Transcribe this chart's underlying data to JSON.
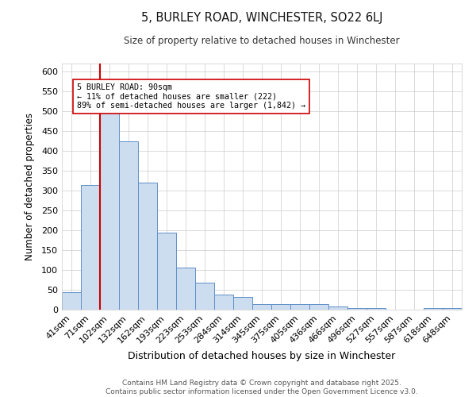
{
  "title": "5, BURLEY ROAD, WINCHESTER, SO22 6LJ",
  "subtitle": "Size of property relative to detached houses in Winchester",
  "xlabel": "Distribution of detached houses by size in Winchester",
  "ylabel": "Number of detached properties",
  "categories": [
    "41sqm",
    "71sqm",
    "102sqm",
    "132sqm",
    "162sqm",
    "193sqm",
    "223sqm",
    "253sqm",
    "284sqm",
    "314sqm",
    "345sqm",
    "375sqm",
    "405sqm",
    "436sqm",
    "466sqm",
    "496sqm",
    "527sqm",
    "557sqm",
    "587sqm",
    "618sqm",
    "648sqm"
  ],
  "values": [
    45,
    315,
    500,
    425,
    320,
    195,
    107,
    68,
    38,
    33,
    14,
    14,
    14,
    14,
    9,
    5,
    4,
    1,
    1,
    4,
    4
  ],
  "bar_color": "#ccddf0",
  "bar_edge_color": "#6090c8",
  "vline_color": "#cc0000",
  "annotation_text": "5 BURLEY ROAD: 90sqm\n← 11% of detached houses are smaller (222)\n89% of semi-detached houses are larger (1,842) →",
  "annotation_box_color": "#ffffff",
  "annotation_box_edge": "#cc0000",
  "footer_text": "Contains HM Land Registry data © Crown copyright and database right 2025.\nContains public sector information licensed under the Open Government Licence v3.0.",
  "bg_color": "#ffffff",
  "grid_color": "#cccccc",
  "ylim": [
    0,
    620
  ],
  "yticks": [
    0,
    50,
    100,
    150,
    200,
    250,
    300,
    350,
    400,
    450,
    500,
    550,
    600
  ],
  "vline_x": 1.5
}
